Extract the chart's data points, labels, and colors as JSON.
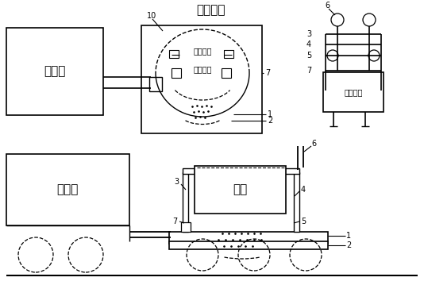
{
  "background_color": "#ffffff",
  "line_color": "#000000",
  "text_color": "#000000",
  "figure_width": 5.34,
  "figure_height": 3.59,
  "dpi": 100,
  "labels": {
    "yunzaiche": "运载车",
    "jiaoguan_tache": "焦罐台车",
    "jiaoguan": "焦罐",
    "jiaoguandimen1": "焦罐底门",
    "jiaoguandimen2": "焦罐底门"
  }
}
